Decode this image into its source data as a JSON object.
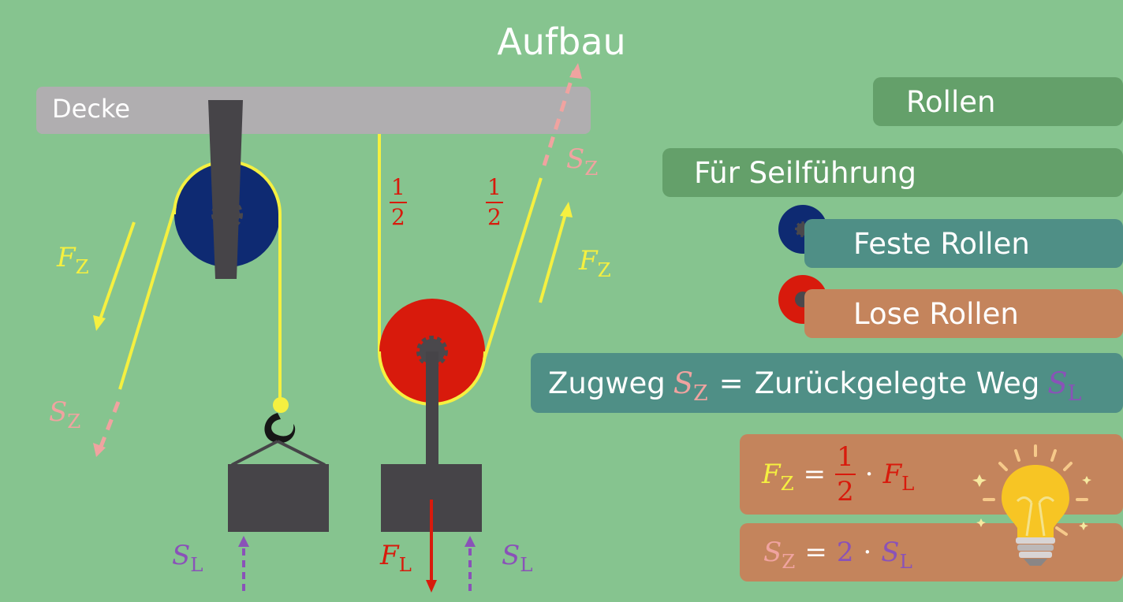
{
  "title": "Aufbau",
  "ceiling_label": "Decke",
  "sidebar": {
    "rollen": "Rollen",
    "seilfuehrung": "Für Seilführung",
    "feste_rollen": "Feste Rollen",
    "lose_rollen": "Lose Rollen",
    "zugweg_prefix": "Zugweg",
    "equals": "=",
    "zurueckgelegte": "Zurückgelegte Weg"
  },
  "symbols": {
    "S": "S",
    "F": "F",
    "sub_Z": "Z",
    "sub_L": "L",
    "eq": "=",
    "dot": "·",
    "two": "2",
    "one": "1"
  },
  "colors": {
    "background": "#86c48f",
    "ceiling": "#b0aeb0",
    "fixed_pulley": "#0e2a72",
    "loose_pulley": "#d81a0c",
    "rope": "#f5f040",
    "load": "#464448",
    "pink": "#f0a3a0",
    "purple": "#8a52b8",
    "red": "#d81a0c",
    "yellow": "#f5f040"
  },
  "icons": [
    "fixed-pulley-icon",
    "loose-pulley-icon",
    "light-bulb-icon",
    "hook-icon"
  ]
}
